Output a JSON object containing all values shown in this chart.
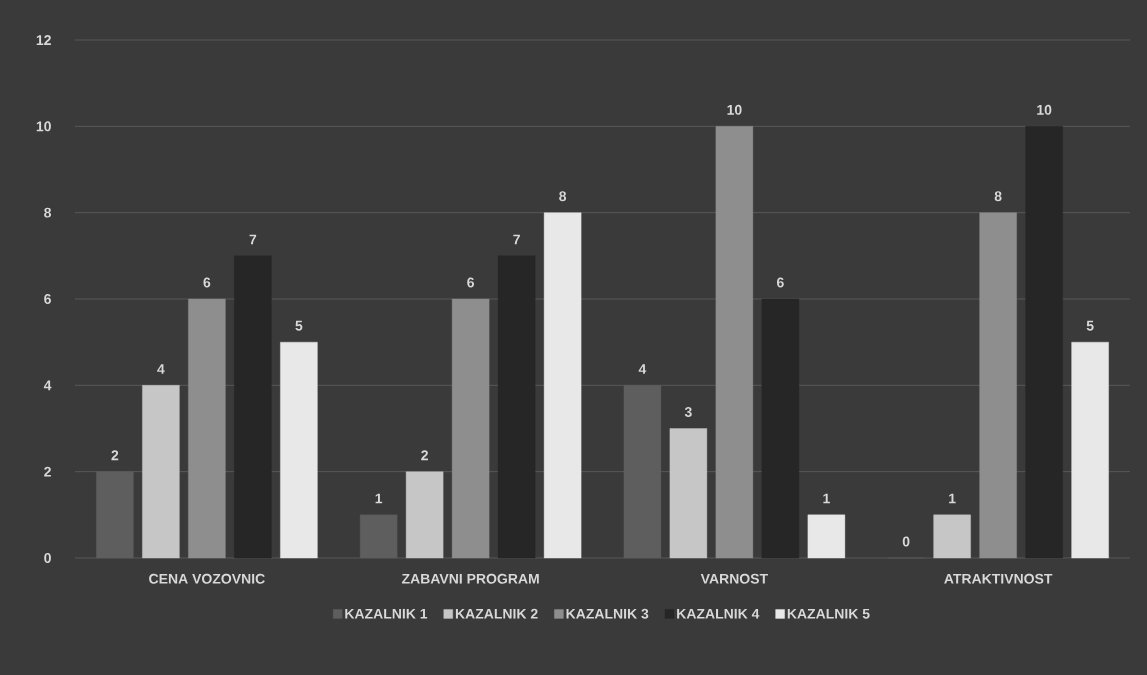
{
  "chart_data": {
    "type": "bar",
    "categories": [
      "CENA VOZOVNIC",
      "ZABAVNI PROGRAM",
      "VARNOST",
      "ATRAKTIVNOST"
    ],
    "series": [
      {
        "name": "KAZALNIK 1",
        "color": "#5e5e5e",
        "values": [
          2,
          1,
          4,
          0
        ]
      },
      {
        "name": "KAZALNIK 2",
        "color": "#c6c6c6",
        "values": [
          4,
          2,
          3,
          1
        ]
      },
      {
        "name": "KAZALNIK 3",
        "color": "#8e8e8e",
        "values": [
          6,
          6,
          10,
          8
        ]
      },
      {
        "name": "KAZALNIK 4",
        "color": "#262626",
        "values": [
          7,
          7,
          6,
          10
        ]
      },
      {
        "name": "KAZALNIK 5",
        "color": "#e8e8e8",
        "values": [
          5,
          8,
          1,
          5
        ]
      }
    ],
    "ylim": [
      0,
      12
    ],
    "yticks": [
      0,
      2,
      4,
      6,
      8,
      10,
      12
    ],
    "grid": "y",
    "legend": "bottom",
    "data_labels": true
  }
}
